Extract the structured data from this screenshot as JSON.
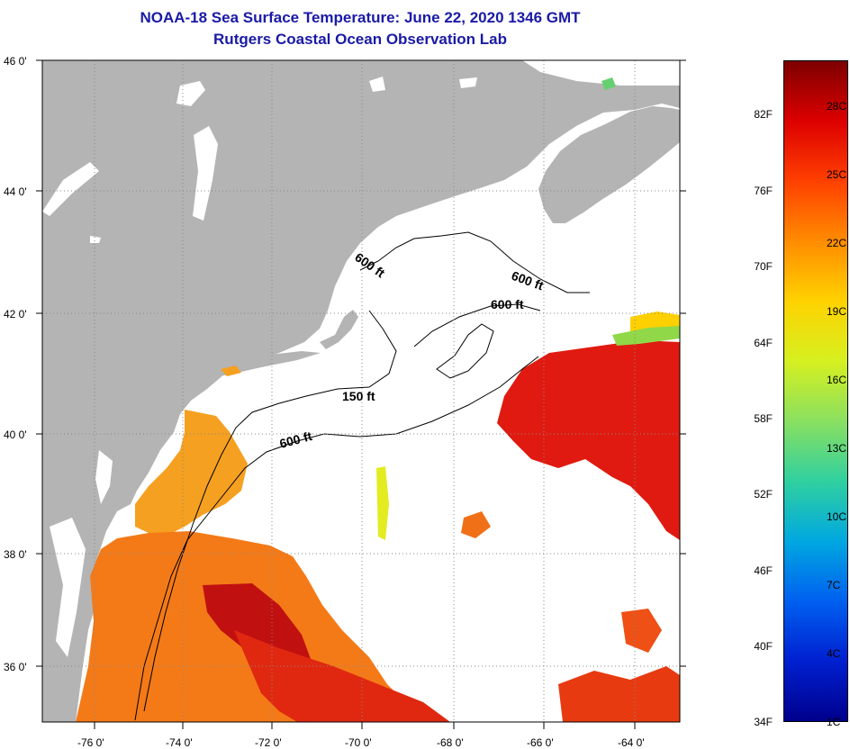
{
  "title": {
    "line1": "NOAA-18 Sea Surface Temperature:  June 22, 2020 1346 GMT",
    "line2": "Rutgers Coastal Ocean Observation Lab"
  },
  "map": {
    "lat_labels": [
      "46 0'",
      "44 0'",
      "42 0'",
      "40 0'",
      "38 0'",
      "36 0'"
    ],
    "lon_labels": [
      "-76 0'",
      "-74 0'",
      "-72 0'",
      "-70 0'",
      "-68 0'",
      "-66 0'",
      "-64 0'"
    ],
    "contour_labels": [
      "600 ft",
      "600 ft",
      "600 ft",
      "150 ft",
      "600 ft"
    ],
    "colors": {
      "land": "#b4b4b4",
      "water_no_data": "#ffffff",
      "grid": "#888888"
    }
  },
  "colorbar": {
    "fahrenheit": [
      "82F",
      "76F",
      "70F",
      "64F",
      "58F",
      "52F",
      "46F",
      "40F",
      "34F"
    ],
    "celsius": [
      "28C",
      "25C",
      "22C",
      "19C",
      "16C",
      "13C",
      "10C",
      "7C",
      "4C",
      "1C"
    ],
    "gradient": [
      "#7d0000",
      "#dd0000",
      "#ff4000",
      "#ff8c00",
      "#ffd200",
      "#d6f020",
      "#8ae060",
      "#30d0a0",
      "#00a8e0",
      "#0060f0",
      "#0020d0",
      "#00008c"
    ]
  }
}
